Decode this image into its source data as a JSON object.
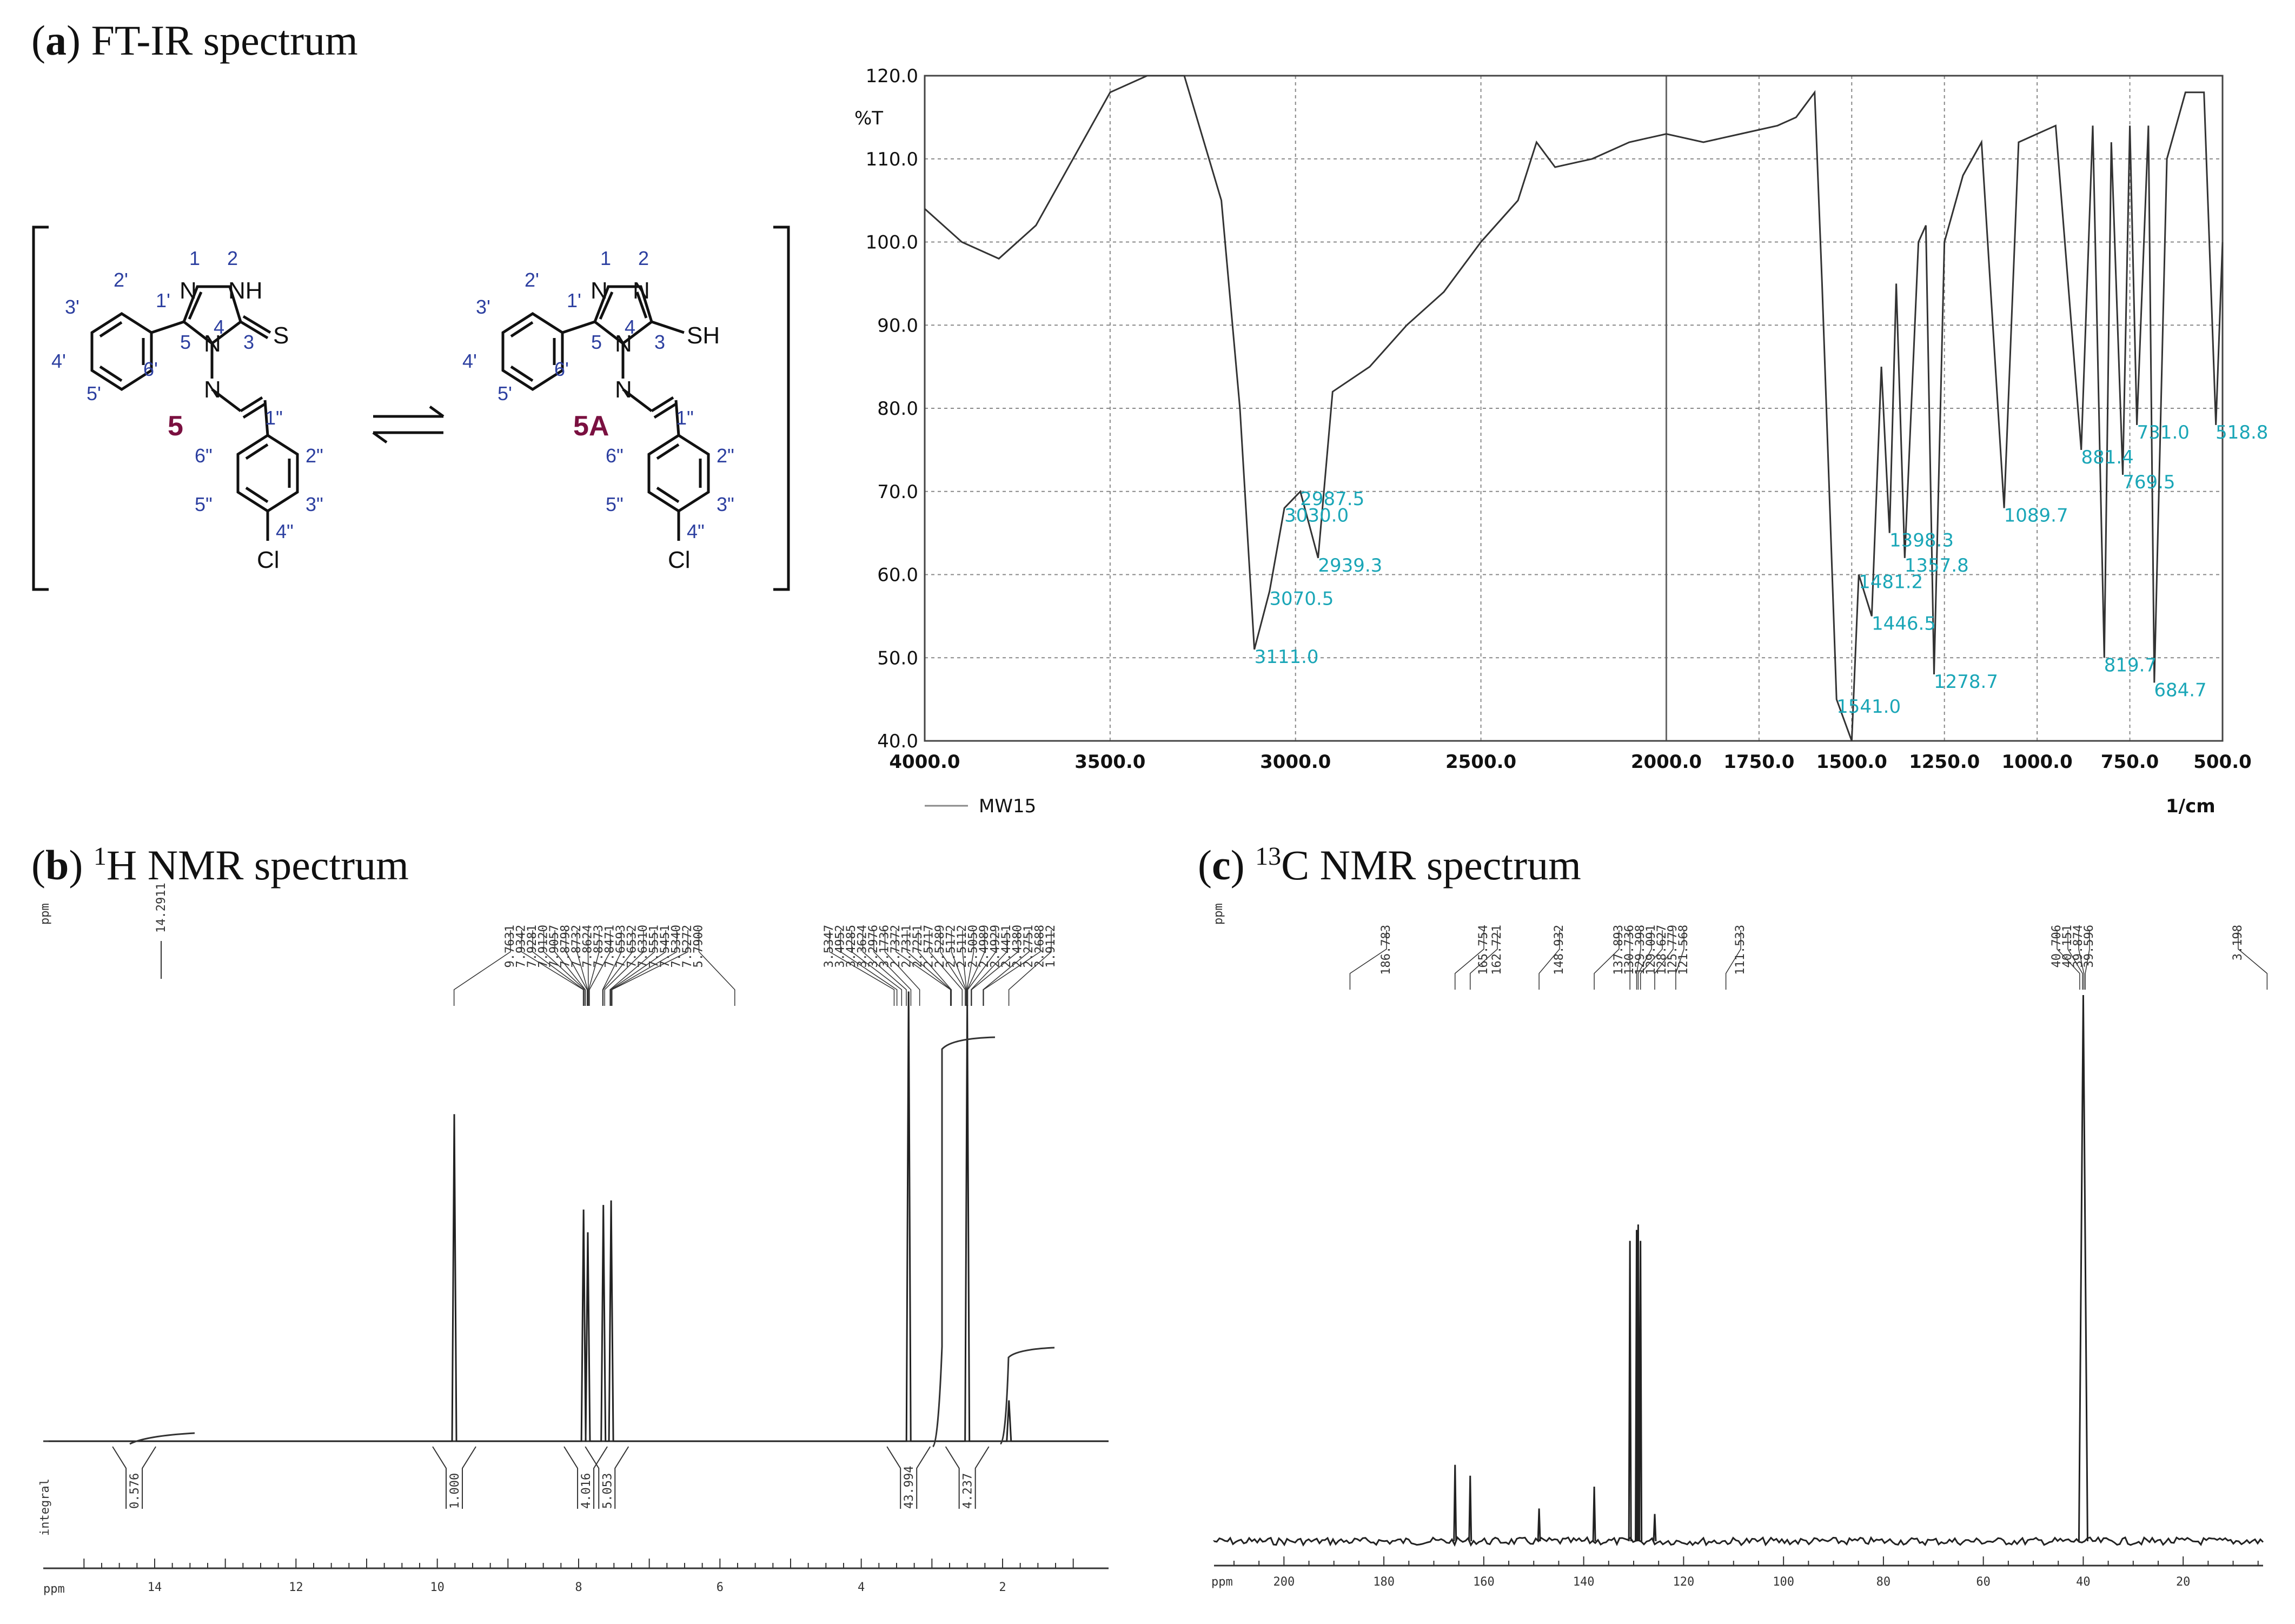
{
  "panels": {
    "a": {
      "letter": "a",
      "title": " FT-IR spectrum"
    },
    "b": {
      "letter": "b",
      "sup": "1",
      "title": "H NMR spectrum"
    },
    "c": {
      "letter": "c",
      "sup": "13",
      "title": "C NMR spectrum"
    }
  },
  "scheme": {
    "compound_left": "5",
    "compound_right": "5A",
    "left_group": "S",
    "right_group": "SH",
    "nh_label": "NH",
    "cl_label": "Cl",
    "ring_numbers": {
      "n1": "1",
      "n2": "2",
      "n4": "4",
      "c3": "3",
      "c5": "5"
    },
    "phenyl_labels": [
      "1'",
      "2'",
      "3'",
      "4'",
      "5'",
      "6'"
    ],
    "aryl_labels": [
      "1\"",
      "2\"",
      "3\"",
      "4\"",
      "5\"",
      "6\""
    ],
    "colors": {
      "compound": "#7a1040",
      "numbering": "#2c3fa0"
    }
  },
  "ir": {
    "ylabel": "%T",
    "xunit": "1/cm",
    "legend": "MW15",
    "peak_color": "#1aa6b7"
  },
  "h_nmr": {
    "axis_label": "ppm",
    "integral_label": "integral",
    "top_peak_label": "14.2911",
    "shift_list_a": [
      "9.7631",
      "7.9342",
      "7.9281",
      "7.9120",
      "7.9057",
      "7.8798",
      "7.8732",
      "7.8624",
      "7.8573",
      "7.8471",
      "7.6593",
      "7.6532",
      "7.6310",
      "7.5551",
      "7.5451",
      "7.5340",
      "7.5272",
      "5.7900"
    ],
    "shift_list_b": [
      "3.5347",
      "3.4952",
      "3.4285",
      "3.3624",
      "3.2976",
      "3.1736",
      "2.7372",
      "2.7311",
      "2.7251",
      "2.5717",
      "2.5289",
      "2.5172",
      "2.5112",
      "2.5050",
      "2.4989",
      "2.4929",
      "2.4451",
      "2.4380",
      "2.2751",
      "2.2688",
      "1.9112"
    ]
  },
  "c_nmr": {
    "axis_label": "ppm",
    "peak_labels": [
      "186.783",
      "165.754",
      "162.721",
      "148.932",
      "137.893",
      "130.736",
      "129.398",
      "129.091",
      "128.627",
      "125.779",
      "121.568",
      "111.533",
      "40.706",
      "40.151",
      "39.874",
      "39.596",
      "3.198"
    ]
  },
  "chart_data": [
    {
      "type": "line",
      "title": "FT-IR spectrum",
      "xlabel": "1/cm",
      "ylabel": "%T",
      "xlim": [
        4000,
        500
      ],
      "ylim": [
        40,
        120
      ],
      "x_ticks": [
        "4000.0",
        "3500.0",
        "3000.0",
        "2500.0",
        "2000.0",
        "1750.0",
        "1500.0",
        "1250.0",
        "1000.0",
        "750.0",
        "500.0"
      ],
      "y_ticks": [
        "40.0",
        "50.0",
        "60.0",
        "70.0",
        "80.0",
        "90.0",
        "100.0",
        "110.0",
        "120.0"
      ],
      "series": [
        {
          "name": "MW15",
          "x": [
            4000,
            3900,
            3800,
            3700,
            3600,
            3500,
            3400,
            3300,
            3200,
            3150,
            3111,
            3070,
            3030,
            2987,
            2939,
            2900,
            2800,
            2700,
            2600,
            2500,
            2400,
            2350,
            2300,
            2200,
            2100,
            2000,
            1900,
            1800,
            1700,
            1650,
            1600,
            1580,
            1541,
            1500,
            1481,
            1446,
            1420,
            1398,
            1380,
            1357,
            1320,
            1300,
            1278,
            1250,
            1200,
            1150,
            1089,
            1050,
            1000,
            950,
            881,
            850,
            819,
            800,
            769,
            750,
            731,
            700,
            684,
            650,
            600,
            550,
            518,
            500
          ],
          "y": [
            104,
            100,
            98,
            102,
            110,
            118,
            122,
            120,
            105,
            80,
            51,
            58,
            68,
            70,
            62,
            82,
            85,
            90,
            94,
            100,
            105,
            112,
            109,
            110,
            112,
            113,
            112,
            113,
            114,
            115,
            118,
            95,
            45,
            40,
            60,
            55,
            85,
            65,
            95,
            62,
            100,
            102,
            48,
            100,
            108,
            112,
            68,
            112,
            113,
            114,
            75,
            114,
            50,
            112,
            72,
            114,
            78,
            114,
            47,
            110,
            118,
            118,
            78,
            100
          ]
        }
      ],
      "peak_labels": [
        "3111.0",
        "3070.5",
        "3030.0",
        "2987.5",
        "2939.3",
        "1541.0",
        "1481.2",
        "1446.5",
        "1398.3",
        "1357.8",
        "1278.7",
        "1089.7",
        "881.4",
        "819.7",
        "769.5",
        "731.0",
        "684.7",
        "518.8"
      ]
    },
    {
      "type": "line",
      "title": "1H NMR spectrum",
      "xlabel": "ppm",
      "xlim": [
        15.5,
        0.5
      ],
      "x_ticks": [
        "14",
        "12",
        "10",
        "8",
        "6",
        "4",
        "2"
      ],
      "peaks": [
        {
          "x": 9.76,
          "h": 0.72
        },
        {
          "x": 7.93,
          "h": 0.51
        },
        {
          "x": 7.87,
          "h": 0.46
        },
        {
          "x": 7.65,
          "h": 0.52
        },
        {
          "x": 7.54,
          "h": 0.53
        },
        {
          "x": 3.33,
          "h": 0.99
        },
        {
          "x": 2.5,
          "h": 0.96
        },
        {
          "x": 1.91,
          "h": 0.09
        }
      ],
      "integrals": [
        "0.576",
        "1.000",
        "4.016",
        "5.053",
        "43.994",
        "4.237"
      ]
    },
    {
      "type": "line",
      "title": "13C NMR spectrum",
      "xlabel": "ppm",
      "xlim": [
        214,
        4
      ],
      "x_ticks": [
        "200",
        "180",
        "160",
        "140",
        "120",
        "100",
        "80",
        "60",
        "40",
        "20"
      ],
      "peaks": [
        {
          "x": 165.75,
          "h": 0.14
        },
        {
          "x": 162.72,
          "h": 0.12
        },
        {
          "x": 148.93,
          "h": 0.06
        },
        {
          "x": 137.89,
          "h": 0.1
        },
        {
          "x": 130.74,
          "h": 0.55
        },
        {
          "x": 129.4,
          "h": 0.57
        },
        {
          "x": 129.09,
          "h": 0.58
        },
        {
          "x": 128.63,
          "h": 0.55
        },
        {
          "x": 125.78,
          "h": 0.05
        },
        {
          "x": 40.0,
          "h": 1.0
        }
      ]
    }
  ]
}
